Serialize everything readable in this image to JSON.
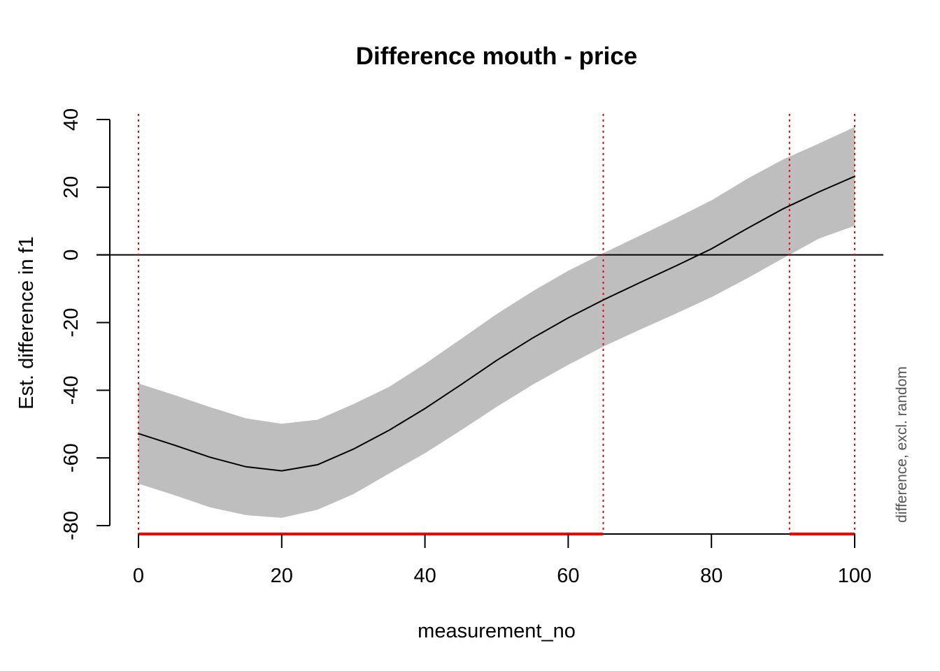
{
  "chart_data": {
    "type": "line",
    "title": "Difference mouth - price",
    "xlabel": "measurement_no",
    "ylabel": "Est. difference in f1",
    "side_note": "difference, excl. random",
    "xlim": [
      0,
      100
    ],
    "ylim": [
      -80,
      40
    ],
    "x_ticks": [
      0,
      20,
      40,
      60,
      80,
      100
    ],
    "y_ticks": [
      -80,
      -60,
      -40,
      -20,
      0,
      20,
      40
    ],
    "reference_line_y": 0,
    "significant_regions": [
      [
        0,
        64.9
      ],
      [
        90.9,
        100
      ]
    ],
    "region_boundaries": [
      0,
      64.9,
      90.9,
      100
    ],
    "colors": {
      "band": "#bebebe",
      "line": "#000000",
      "significance": "#ff0000"
    },
    "series": [
      {
        "x": [
          0,
          5,
          10,
          15,
          20,
          25,
          30,
          35,
          40,
          45,
          50,
          55,
          60,
          65,
          70,
          75,
          80,
          85,
          90,
          95,
          100
        ],
        "y": [
          -52.8,
          -56.2,
          -59.8,
          -62.6,
          -63.8,
          -62.0,
          -57.4,
          -51.8,
          -45.4,
          -38.4,
          -31.2,
          -24.6,
          -18.6,
          -13.2,
          -8.2,
          -3.3,
          1.8,
          7.8,
          13.6,
          18.6,
          23.2
        ],
        "lower": [
          -67.6,
          -71.0,
          -74.6,
          -76.9,
          -77.7,
          -75.3,
          -70.7,
          -64.6,
          -58.6,
          -51.9,
          -44.9,
          -38.4,
          -32.5,
          -27.0,
          -22.1,
          -17.4,
          -12.5,
          -6.9,
          -1.0,
          4.8,
          8.6
        ],
        "upper": [
          -38.0,
          -41.4,
          -45.0,
          -48.3,
          -49.9,
          -48.7,
          -44.1,
          -39.0,
          -32.2,
          -24.9,
          -17.5,
          -10.8,
          -4.7,
          0.6,
          5.7,
          10.8,
          16.1,
          22.5,
          28.2,
          32.9,
          37.8
        ]
      }
    ]
  }
}
